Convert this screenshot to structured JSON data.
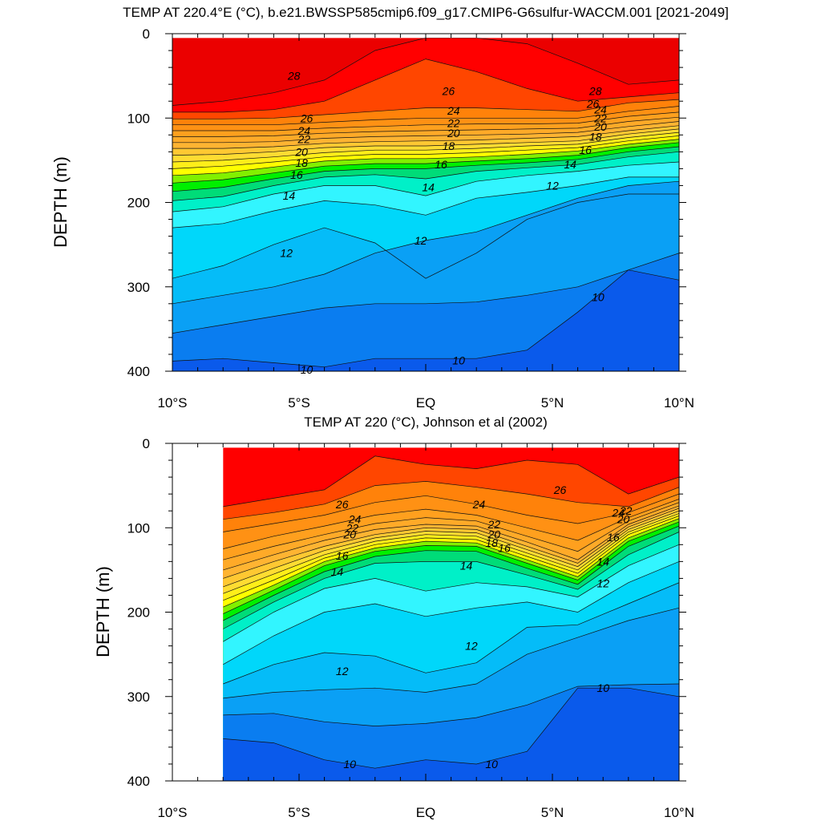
{
  "chart_data": [
    {
      "type": "contour",
      "title": "TEMP AT 220.4°E (°C), b.e21.BWSSP585cmip6.f09_g17.CMIP6-G6sulfur-WACCM.001 [2021-2049]",
      "ylabel": "DEPTH (m)",
      "xlim": [
        -10,
        10
      ],
      "ylim": [
        0,
        400
      ],
      "x_ticks": [
        -10,
        -5,
        0,
        5,
        10
      ],
      "x_tick_labels": [
        "10°S",
        "5°S",
        "EQ",
        "5°N",
        "10°N"
      ],
      "y_ticks": [
        0,
        100,
        200,
        300,
        400
      ],
      "y_tick_labels": [
        "0",
        "100",
        "200",
        "300",
        "400"
      ],
      "data_xmin": -10,
      "data_ymin": 5,
      "contour_interval": 1,
      "isotherm_x": [
        -10,
        -8,
        -6,
        -4,
        -2,
        0,
        2,
        4,
        6,
        8,
        10
      ],
      "isotherms": [
        {
          "t": 28,
          "depth": [
            85,
            80,
            70,
            55,
            20,
            0,
            5,
            12,
            35,
            60,
            55
          ]
        },
        {
          "t": 27,
          "depth": [
            93,
            93,
            90,
            80,
            55,
            30,
            45,
            65,
            80,
            75,
            70
          ]
        },
        {
          "t": 26,
          "depth": [
            101,
            101,
            100,
            96,
            92,
            88,
            88,
            90,
            92,
            82,
            78
          ]
        },
        {
          "t": 25,
          "depth": [
            108,
            108,
            108,
            105,
            102,
            100,
            100,
            100,
            100,
            92,
            86
          ]
        },
        {
          "t": 24,
          "depth": [
            115,
            115,
            115,
            112,
            110,
            108,
            107,
            107,
            106,
            98,
            93
          ]
        },
        {
          "t": 23,
          "depth": [
            122,
            122,
            121,
            118,
            116,
            115,
            114,
            113,
            112,
            104,
            99
          ]
        },
        {
          "t": 22,
          "depth": [
            129,
            129,
            128,
            124,
            122,
            121,
            120,
            119,
            117,
            110,
            104
          ]
        },
        {
          "t": 21,
          "depth": [
            136,
            136,
            134,
            130,
            128,
            127,
            126,
            124,
            122,
            115,
            109
          ]
        },
        {
          "t": 20,
          "depth": [
            144,
            143,
            140,
            135,
            133,
            133,
            131,
            129,
            127,
            119,
            113
          ]
        },
        {
          "t": 19,
          "depth": [
            152,
            150,
            146,
            141,
            138,
            138,
            136,
            133,
            131,
            123,
            117
          ]
        },
        {
          "t": 18,
          "depth": [
            160,
            157,
            152,
            146,
            143,
            143,
            141,
            138,
            135,
            127,
            121
          ]
        },
        {
          "t": 17,
          "depth": [
            168,
            165,
            158,
            151,
            148,
            148,
            146,
            143,
            139,
            131,
            125
          ]
        },
        {
          "t": 16,
          "depth": [
            177,
            173,
            165,
            157,
            154,
            154,
            151,
            148,
            144,
            135,
            129
          ]
        },
        {
          "t": 15,
          "depth": [
            187,
            182,
            172,
            163,
            160,
            160,
            156,
            153,
            149,
            140,
            134
          ]
        },
        {
          "t": 14,
          "depth": [
            198,
            193,
            180,
            170,
            167,
            172,
            163,
            159,
            155,
            146,
            140
          ]
        },
        {
          "t": 13,
          "depth": [
            211,
            205,
            190,
            180,
            180,
            192,
            175,
            168,
            163,
            156,
            152
          ]
        },
        {
          "t": 12,
          "depth": [
            230,
            225,
            210,
            198,
            203,
            215,
            195,
            188,
            180,
            170,
            170
          ]
        },
        {
          "t": 11.5,
          "depth": [
            290,
            275,
            250,
            230,
            248,
            290,
            260,
            220,
            200,
            190,
            190
          ]
        },
        {
          "t": 11,
          "depth": [
            320,
            310,
            300,
            285,
            260,
            245,
            235,
            215,
            195,
            180,
            175
          ]
        },
        {
          "t": 10.5,
          "depth": [
            355,
            345,
            335,
            325,
            320,
            320,
            318,
            310,
            300,
            280,
            260
          ]
        },
        {
          "t": 10,
          "depth": [
            388,
            385,
            390,
            395,
            385,
            385,
            385,
            375,
            330,
            280,
            292
          ]
        }
      ],
      "contour_labels": [
        {
          "text": "28",
          "x": -5.2,
          "y": 50
        },
        {
          "text": "26",
          "x": 0.9,
          "y": 68
        },
        {
          "text": "28",
          "x": 6.7,
          "y": 68
        },
        {
          "text": "26",
          "x": 6.6,
          "y": 83
        },
        {
          "text": "24",
          "x": 1.1,
          "y": 91
        },
        {
          "text": "24",
          "x": 6.9,
          "y": 90
        },
        {
          "text": "22",
          "x": 6.9,
          "y": 100
        },
        {
          "text": "20",
          "x": 6.9,
          "y": 110
        },
        {
          "text": "18",
          "x": 6.7,
          "y": 122
        },
        {
          "text": "16",
          "x": 6.3,
          "y": 138
        },
        {
          "text": "14",
          "x": 5.7,
          "y": 155
        },
        {
          "text": "12",
          "x": 5.0,
          "y": 180
        },
        {
          "text": "26",
          "x": -4.7,
          "y": 100
        },
        {
          "text": "24",
          "x": -4.8,
          "y": 115
        },
        {
          "text": "22",
          "x": -4.8,
          "y": 125
        },
        {
          "text": "22",
          "x": 1.1,
          "y": 106
        },
        {
          "text": "20",
          "x": -4.9,
          "y": 140
        },
        {
          "text": "20",
          "x": 1.1,
          "y": 118
        },
        {
          "text": "18",
          "x": -4.9,
          "y": 153
        },
        {
          "text": "18",
          "x": 0.9,
          "y": 133
        },
        {
          "text": "16",
          "x": -5.1,
          "y": 167
        },
        {
          "text": "16",
          "x": 0.6,
          "y": 155
        },
        {
          "text": "14",
          "x": -5.4,
          "y": 192
        },
        {
          "text": "14",
          "x": 0.1,
          "y": 182
        },
        {
          "text": "12",
          "x": -5.5,
          "y": 260
        },
        {
          "text": "12",
          "x": -0.2,
          "y": 245
        },
        {
          "text": "10",
          "x": 6.8,
          "y": 312
        },
        {
          "text": "10",
          "x": 1.3,
          "y": 387
        },
        {
          "text": "10",
          "x": -4.7,
          "y": 398
        }
      ]
    },
    {
      "type": "contour",
      "title": "TEMP AT 220 (°C), Johnson et al (2002)",
      "ylabel": "DEPTH (m)",
      "xlim": [
        -10,
        10
      ],
      "ylim": [
        0,
        400
      ],
      "x_ticks": [
        -10,
        -5,
        0,
        5,
        10
      ],
      "x_tick_labels": [
        "10°S",
        "5°S",
        "EQ",
        "5°N",
        "10°N"
      ],
      "y_ticks": [
        0,
        100,
        200,
        300,
        400
      ],
      "y_tick_labels": [
        "0",
        "100",
        "200",
        "300",
        "400"
      ],
      "data_xmin": -8,
      "data_ymin": 5,
      "contour_interval": 1,
      "isotherm_x": [
        -8,
        -6,
        -4,
        -2,
        0,
        2,
        4,
        6,
        8,
        10
      ],
      "isotherms": [
        {
          "t": 27,
          "depth": [
            75,
            65,
            55,
            15,
            25,
            30,
            20,
            25,
            60,
            40
          ]
        },
        {
          "t": 26,
          "depth": [
            90,
            82,
            72,
            50,
            45,
            52,
            60,
            70,
            75,
            52
          ]
        },
        {
          "t": 25,
          "depth": [
            105,
            95,
            85,
            70,
            62,
            72,
            85,
            95,
            82,
            60
          ]
        },
        {
          "t": 24,
          "depth": [
            125,
            110,
            98,
            85,
            78,
            85,
            100,
            115,
            88,
            66
          ]
        },
        {
          "t": 23,
          "depth": [
            138,
            122,
            108,
            95,
            88,
            92,
            110,
            128,
            92,
            70
          ]
        },
        {
          "t": 22,
          "depth": [
            150,
            132,
            115,
            102,
            96,
            98,
            117,
            138,
            96,
            74
          ]
        },
        {
          "t": 21,
          "depth": [
            160,
            140,
            122,
            108,
            100,
            102,
            122,
            142,
            99,
            77
          ]
        },
        {
          "t": 20,
          "depth": [
            170,
            148,
            127,
            112,
            104,
            106,
            126,
            146,
            102,
            80
          ]
        },
        {
          "t": 19,
          "depth": [
            178,
            155,
            132,
            116,
            108,
            110,
            130,
            150,
            105,
            83
          ]
        },
        {
          "t": 18,
          "depth": [
            186,
            162,
            136,
            120,
            112,
            114,
            134,
            154,
            108,
            86
          ]
        },
        {
          "t": 17,
          "depth": [
            194,
            168,
            140,
            124,
            116,
            118,
            138,
            158,
            112,
            89
          ]
        },
        {
          "t": 16,
          "depth": [
            202,
            174,
            145,
            128,
            121,
            122,
            142,
            162,
            116,
            93
          ]
        },
        {
          "t": 15,
          "depth": [
            210,
            180,
            152,
            134,
            127,
            128,
            148,
            167,
            122,
            98
          ]
        },
        {
          "t": 14,
          "depth": [
            220,
            188,
            160,
            142,
            140,
            140,
            156,
            173,
            132,
            105
          ]
        },
        {
          "t": 13,
          "depth": [
            235,
            200,
            172,
            160,
            175,
            165,
            170,
            182,
            145,
            120
          ]
        },
        {
          "t": 12,
          "depth": [
            262,
            228,
            200,
            190,
            205,
            195,
            188,
            200,
            165,
            140
          ]
        },
        {
          "t": 11.5,
          "depth": [
            285,
            262,
            248,
            252,
            272,
            260,
            218,
            215,
            190,
            165
          ]
        },
        {
          "t": 11,
          "depth": [
            302,
            295,
            292,
            290,
            295,
            285,
            250,
            230,
            210,
            195
          ]
        },
        {
          "t": 10.5,
          "depth": [
            322,
            320,
            330,
            335,
            332,
            325,
            310,
            288,
            286,
            285
          ]
        },
        {
          "t": 10,
          "depth": [
            350,
            355,
            375,
            385,
            375,
            380,
            365,
            290,
            290,
            300
          ]
        }
      ],
      "contour_labels": [
        {
          "text": "26",
          "x": -3.3,
          "y": 72
        },
        {
          "text": "24",
          "x": 2.1,
          "y": 72
        },
        {
          "text": "26",
          "x": 5.3,
          "y": 55
        },
        {
          "text": "24",
          "x": -2.8,
          "y": 90
        },
        {
          "text": "22",
          "x": -2.9,
          "y": 100
        },
        {
          "text": "20",
          "x": -3.0,
          "y": 108
        },
        {
          "text": "22",
          "x": 2.7,
          "y": 96
        },
        {
          "text": "20",
          "x": 2.7,
          "y": 108
        },
        {
          "text": "18",
          "x": 2.6,
          "y": 118
        },
        {
          "text": "16",
          "x": -3.3,
          "y": 133
        },
        {
          "text": "16",
          "x": 3.1,
          "y": 124
        },
        {
          "text": "14",
          "x": -3.5,
          "y": 152
        },
        {
          "text": "14",
          "x": 1.6,
          "y": 145
        },
        {
          "text": "24",
          "x": 7.6,
          "y": 82
        },
        {
          "text": "22",
          "x": 7.9,
          "y": 80
        },
        {
          "text": "20",
          "x": 7.8,
          "y": 90
        },
        {
          "text": "16",
          "x": 7.4,
          "y": 111
        },
        {
          "text": "14",
          "x": 7.0,
          "y": 140
        },
        {
          "text": "12",
          "x": 7.0,
          "y": 166
        },
        {
          "text": "12",
          "x": 1.8,
          "y": 240
        },
        {
          "text": "12",
          "x": -3.3,
          "y": 270
        },
        {
          "text": "10",
          "x": 7.0,
          "y": 290
        },
        {
          "text": "10",
          "x": 2.6,
          "y": 380
        },
        {
          "text": "10",
          "x": -3.0,
          "y": 380
        }
      ]
    }
  ]
}
